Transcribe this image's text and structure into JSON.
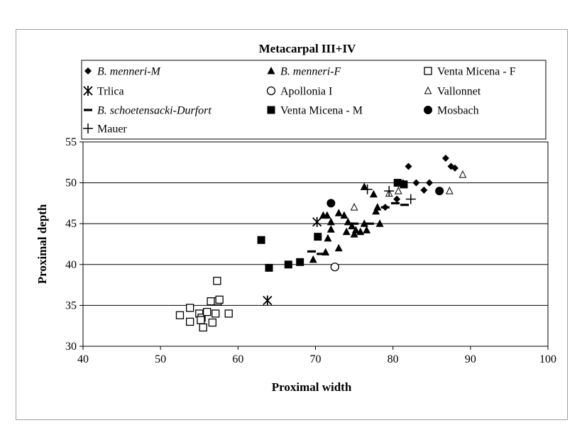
{
  "chart_data": {
    "type": "scatter",
    "title": "Metacarpal III+IV",
    "xlabel": "Proximal width",
    "ylabel": "Proximal depth",
    "xlim": [
      40,
      100
    ],
    "ylim": [
      30,
      55
    ],
    "xticks": [
      40,
      50,
      60,
      70,
      80,
      90,
      100
    ],
    "yticks": [
      30,
      35,
      40,
      45,
      50,
      55
    ],
    "grid": "horizontal",
    "legend_position": "top",
    "series": [
      {
        "name": "B. menneri-M",
        "italic_part": "B. menneri",
        "rest": "-M",
        "marker": "diamond",
        "points": [
          [
            82,
            52
          ],
          [
            86.8,
            53
          ],
          [
            87.5,
            52
          ],
          [
            88,
            51.8
          ],
          [
            84.7,
            50
          ],
          [
            83,
            50
          ],
          [
            84,
            49.1
          ],
          [
            81.3,
            50
          ],
          [
            79,
            47
          ],
          [
            80.5,
            48
          ]
        ]
      },
      {
        "name": "B. menneri-F",
        "italic_part": "B. menneri",
        "rest": "-F",
        "marker": "triangle",
        "points": [
          [
            71,
            46
          ],
          [
            71.5,
            46
          ],
          [
            72,
            45.2
          ],
          [
            73,
            46.3
          ],
          [
            73.7,
            46
          ],
          [
            74.2,
            45.2
          ],
          [
            74.7,
            44.7
          ],
          [
            75.2,
            44.2
          ],
          [
            76.3,
            45
          ],
          [
            76.3,
            49.5
          ],
          [
            77.5,
            48.6
          ],
          [
            78,
            47
          ],
          [
            77.8,
            46.5
          ],
          [
            78.3,
            45
          ],
          [
            72,
            44.3
          ],
          [
            71.6,
            43.2
          ],
          [
            73,
            42
          ],
          [
            71.3,
            41.5
          ],
          [
            69.7,
            40.6
          ],
          [
            75,
            43.7
          ],
          [
            75.8,
            44
          ],
          [
            76.6,
            44.2
          ],
          [
            74,
            44
          ]
        ]
      },
      {
        "name": "Venta Micena - F",
        "marker": "square-open",
        "points": [
          [
            52.5,
            33.8
          ],
          [
            53.8,
            34.7
          ],
          [
            53.8,
            33
          ],
          [
            55,
            34
          ],
          [
            55.3,
            33.5
          ],
          [
            55.5,
            32.3
          ],
          [
            56,
            34.2
          ],
          [
            56.5,
            35.5
          ],
          [
            57.1,
            34
          ],
          [
            57.3,
            38
          ],
          [
            57.4,
            35.5
          ],
          [
            57.6,
            35.7
          ],
          [
            58.8,
            34
          ],
          [
            56.7,
            32.9
          ],
          [
            55.2,
            33.2
          ]
        ]
      },
      {
        "name": "Trlica",
        "marker": "star",
        "points": [
          [
            70.2,
            45.2
          ],
          [
            63.8,
            35.6
          ]
        ]
      },
      {
        "name": "Apollonia I",
        "marker": "circle-open",
        "points": [
          [
            72.5,
            39.7
          ]
        ]
      },
      {
        "name": "Vallonnet",
        "marker": "triangle-open",
        "points": [
          [
            75,
            47
          ],
          [
            79.5,
            48.7
          ],
          [
            80.7,
            49
          ],
          [
            87.3,
            49
          ],
          [
            89,
            51
          ]
        ]
      },
      {
        "name": "B. schoetensacki-Durfort",
        "italic_part": "B. schoetensacki-Durfort",
        "rest": "",
        "marker": "dash",
        "points": [
          [
            69.5,
            41.6
          ],
          [
            70.7,
            41.3
          ],
          [
            75,
            45
          ],
          [
            77,
            45
          ],
          [
            80.3,
            47.5
          ],
          [
            81.5,
            47.3
          ],
          [
            79,
            47
          ]
        ]
      },
      {
        "name": "Venta Micena - M",
        "marker": "square",
        "points": [
          [
            63,
            43
          ],
          [
            64,
            39.6
          ],
          [
            66.5,
            40
          ],
          [
            68,
            40.3
          ],
          [
            70.3,
            43.4
          ],
          [
            80.6,
            50
          ],
          [
            81.4,
            49.8
          ]
        ]
      },
      {
        "name": "Mosbach",
        "marker": "circle",
        "points": [
          [
            72,
            47.5
          ],
          [
            86,
            49
          ]
        ]
      },
      {
        "name": "Mauer",
        "marker": "plus",
        "points": [
          [
            76.7,
            49.2
          ],
          [
            79.5,
            49
          ],
          [
            82.3,
            48
          ]
        ]
      }
    ]
  }
}
